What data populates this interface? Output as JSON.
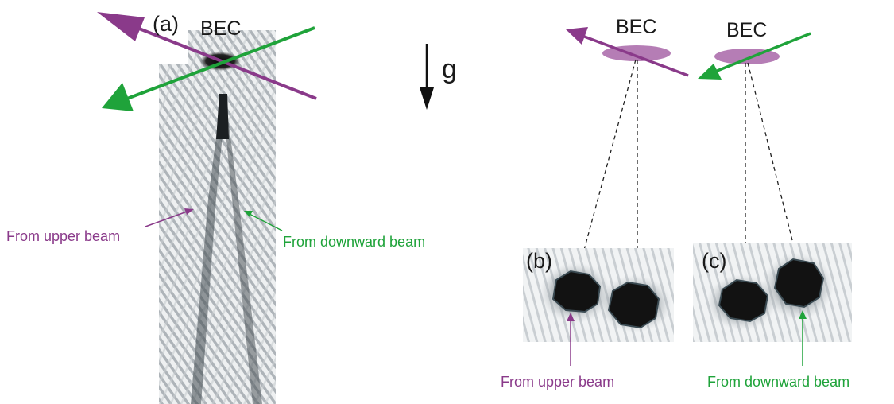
{
  "colors": {
    "upper": "#8a3a8a",
    "downward": "#1fa33a",
    "gravity": "#111111",
    "bec_cloud": "#a866a8",
    "atom_dark": "#121212"
  },
  "panel_a": {
    "label": "(a)",
    "bec_label": "BEC",
    "annotation_upper": "From upper beam",
    "annotation_downward": "From downward beam"
  },
  "gravity": {
    "label": "g",
    "icon": "down-arrow-icon"
  },
  "schematic": {
    "bec_left_label": "BEC",
    "bec_right_label": "BEC"
  },
  "panel_b": {
    "label": "(b)",
    "annotation": "From upper beam"
  },
  "panel_c": {
    "label": "(c)",
    "annotation": "From downward beam"
  }
}
